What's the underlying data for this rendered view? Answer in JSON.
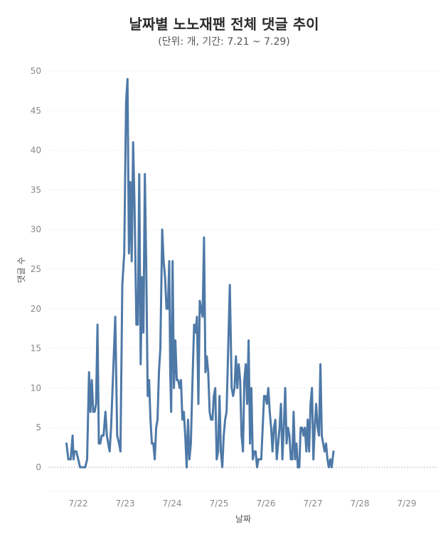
{
  "chart_data": {
    "type": "line",
    "title": "날짜별 노노재팬 전체 댓글 추이",
    "subtitle": "(단위: 개, 기간: 7.21 ~ 7.29)",
    "xlabel": "날짜",
    "ylabel": "댓글 수",
    "ylim": [
      -3,
      52
    ],
    "yticks": [
      0,
      5,
      10,
      15,
      20,
      25,
      30,
      35,
      40,
      45,
      50
    ],
    "xlim": [
      21.6,
      29.45
    ],
    "x_tick_positions": [
      22,
      23,
      24,
      25,
      26,
      27,
      28,
      29
    ],
    "x_tick_labels": [
      "7/22",
      "7/23",
      "7/24",
      "7/25",
      "7/26",
      "7/27",
      "7/28",
      "7/29"
    ],
    "grid": true,
    "colors": {
      "line": "#4e79a7",
      "grid": "#e6e6e6",
      "zero_line": "#bbbbbb"
    },
    "series": [
      {
        "name": "댓글 수",
        "points": [
          [
            21.75,
            3
          ],
          [
            21.79,
            1
          ],
          [
            21.84,
            1
          ],
          [
            21.88,
            4
          ],
          [
            21.9,
            1
          ],
          [
            21.92,
            2
          ],
          [
            21.96,
            2
          ],
          [
            22.0,
            1
          ],
          [
            22.04,
            0
          ],
          [
            22.1,
            0
          ],
          [
            22.15,
            0
          ],
          [
            22.19,
            1
          ],
          [
            22.23,
            12
          ],
          [
            22.26,
            7
          ],
          [
            22.29,
            11
          ],
          [
            22.32,
            7
          ],
          [
            22.35,
            7
          ],
          [
            22.38,
            8
          ],
          [
            22.41,
            18
          ],
          [
            22.44,
            3
          ],
          [
            22.47,
            3
          ],
          [
            22.5,
            4
          ],
          [
            22.54,
            4
          ],
          [
            22.58,
            7
          ],
          [
            22.61,
            4
          ],
          [
            22.64,
            3
          ],
          [
            22.67,
            2
          ],
          [
            22.7,
            5
          ],
          [
            22.79,
            19
          ],
          [
            22.83,
            4
          ],
          [
            22.87,
            3
          ],
          [
            22.9,
            2
          ],
          [
            22.94,
            23
          ],
          [
            22.98,
            27
          ],
          [
            23.02,
            46
          ],
          [
            23.05,
            49
          ],
          [
            23.08,
            27
          ],
          [
            23.11,
            36
          ],
          [
            23.14,
            26
          ],
          [
            23.17,
            41
          ],
          [
            23.2,
            33
          ],
          [
            23.24,
            18
          ],
          [
            23.27,
            18
          ],
          [
            23.3,
            37
          ],
          [
            23.33,
            13
          ],
          [
            23.36,
            24
          ],
          [
            23.39,
            17
          ],
          [
            23.42,
            37
          ],
          [
            23.45,
            25
          ],
          [
            23.48,
            9
          ],
          [
            23.51,
            11
          ],
          [
            23.54,
            6
          ],
          [
            23.57,
            3
          ],
          [
            23.6,
            3
          ],
          [
            23.63,
            1
          ],
          [
            23.66,
            5
          ],
          [
            23.69,
            6
          ],
          [
            23.72,
            12
          ],
          [
            23.75,
            15
          ],
          [
            23.79,
            30
          ],
          [
            23.82,
            26
          ],
          [
            23.85,
            24
          ],
          [
            23.88,
            20
          ],
          [
            23.91,
            20
          ],
          [
            23.94,
            26
          ],
          [
            23.96,
            12
          ],
          [
            23.98,
            7
          ],
          [
            24.01,
            26
          ],
          [
            24.04,
            10
          ],
          [
            24.07,
            16
          ],
          [
            24.1,
            11
          ],
          [
            24.13,
            11
          ],
          [
            24.16,
            10
          ],
          [
            24.19,
            11
          ],
          [
            24.22,
            6
          ],
          [
            24.25,
            7
          ],
          [
            24.28,
            4
          ],
          [
            24.31,
            0
          ],
          [
            24.34,
            6
          ],
          [
            24.37,
            1
          ],
          [
            24.4,
            3
          ],
          [
            24.43,
            10
          ],
          [
            24.47,
            18
          ],
          [
            24.5,
            17
          ],
          [
            24.53,
            19
          ],
          [
            24.56,
            8
          ],
          [
            24.59,
            21
          ],
          [
            24.62,
            20
          ],
          [
            24.65,
            19
          ],
          [
            24.68,
            29
          ],
          [
            24.71,
            12
          ],
          [
            24.74,
            14
          ],
          [
            24.77,
            12
          ],
          [
            24.8,
            7
          ],
          [
            24.83,
            6
          ],
          [
            24.86,
            6
          ],
          [
            24.89,
            9
          ],
          [
            24.92,
            10
          ],
          [
            24.95,
            1
          ],
          [
            24.98,
            2
          ],
          [
            25.01,
            9
          ],
          [
            25.04,
            2
          ],
          [
            25.07,
            0
          ],
          [
            25.1,
            4
          ],
          [
            25.13,
            6
          ],
          [
            25.16,
            7
          ],
          [
            25.23,
            23
          ],
          [
            25.27,
            10
          ],
          [
            25.3,
            9
          ],
          [
            25.33,
            10
          ],
          [
            25.36,
            14
          ],
          [
            25.39,
            10
          ],
          [
            25.42,
            13
          ],
          [
            25.45,
            11
          ],
          [
            25.48,
            4
          ],
          [
            25.51,
            2
          ],
          [
            25.54,
            11
          ],
          [
            25.57,
            13
          ],
          [
            25.6,
            8
          ],
          [
            25.63,
            16
          ],
          [
            25.66,
            3
          ],
          [
            25.69,
            10
          ],
          [
            25.72,
            1
          ],
          [
            25.75,
            2
          ],
          [
            25.78,
            2
          ],
          [
            25.81,
            0
          ],
          [
            25.84,
            1
          ],
          [
            25.87,
            1
          ],
          [
            25.9,
            1
          ],
          [
            25.93,
            5
          ],
          [
            25.96,
            9
          ],
          [
            25.99,
            9
          ],
          [
            26.02,
            8
          ],
          [
            26.05,
            10
          ],
          [
            26.08,
            7
          ],
          [
            26.11,
            5
          ],
          [
            26.14,
            2
          ],
          [
            26.17,
            5
          ],
          [
            26.2,
            6
          ],
          [
            26.23,
            1
          ],
          [
            26.26,
            3
          ],
          [
            26.29,
            5
          ],
          [
            26.32,
            8
          ],
          [
            26.35,
            1
          ],
          [
            26.38,
            5
          ],
          [
            26.41,
            10
          ],
          [
            26.44,
            3
          ],
          [
            26.47,
            5
          ],
          [
            26.5,
            4
          ],
          [
            26.53,
            1
          ],
          [
            26.56,
            1
          ],
          [
            26.59,
            7
          ],
          [
            26.62,
            1
          ],
          [
            26.65,
            3
          ],
          [
            26.68,
            0
          ],
          [
            26.71,
            0
          ],
          [
            26.74,
            5
          ],
          [
            26.77,
            5
          ],
          [
            26.8,
            4
          ],
          [
            26.83,
            5
          ],
          [
            26.86,
            2
          ],
          [
            26.89,
            6
          ],
          [
            26.92,
            2
          ],
          [
            26.95,
            8
          ],
          [
            26.98,
            10
          ],
          [
            27.01,
            1
          ],
          [
            27.04,
            5
          ],
          [
            27.07,
            8
          ],
          [
            27.1,
            5
          ],
          [
            27.13,
            4
          ],
          [
            27.16,
            13
          ],
          [
            27.19,
            4
          ],
          [
            27.22,
            3
          ],
          [
            27.25,
            2
          ],
          [
            27.28,
            3
          ],
          [
            27.31,
            1
          ],
          [
            27.34,
            0
          ],
          [
            27.37,
            1
          ],
          [
            27.4,
            0
          ],
          [
            27.44,
            2
          ]
        ]
      }
    ]
  }
}
